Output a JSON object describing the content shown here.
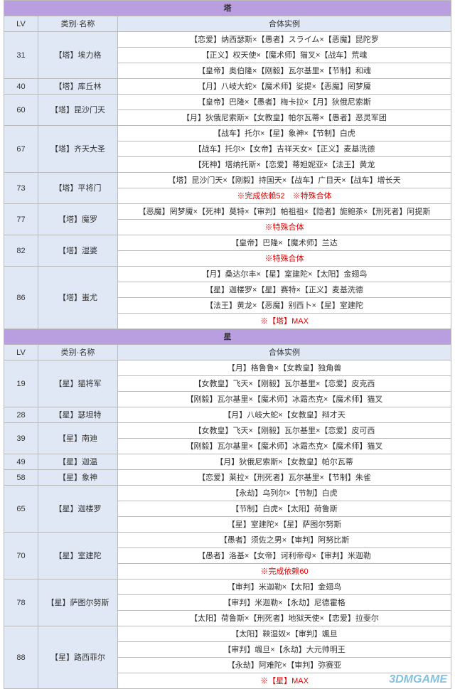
{
  "columns": {
    "lv": "LV",
    "name": "类别·名称",
    "example": "合体实例"
  },
  "sections": [
    {
      "title": "塔",
      "rows": [
        {
          "lv": "31",
          "name": "【塔】埃力格",
          "examples": [
            "【恋爱】纳西瑟斯×【愚者】スライム×【恶魔】昆陀罗",
            "【正义】权天使×【魔术师】猫叉×【战车】荒魂",
            "【皇帝】奥伯隆×【刚毅】瓦尔基里×【节制】和魂"
          ]
        },
        {
          "lv": "40",
          "name": "【塔】库丘林",
          "examples": [
            "【月】八岐大蛇×【魔术师】娑提×【恶魔】罔梦魇"
          ]
        },
        {
          "lv": "60",
          "name": "【塔】昆沙门天",
          "examples": [
            "【皇帝】巴隆×【愚者】梅卡拉×【月】狄俄尼索斯",
            "【月】狄俄尼索斯×【女教皇】帕尔瓦蒂×【愚者】恶灵军团"
          ]
        },
        {
          "lv": "67",
          "name": "【塔】齐天大圣",
          "examples": [
            "【战车】托尔×【星】象神×【节制】白虎",
            "【战车】托尔×【女帝】吉祥天女×【正义】麦基洗德",
            "【死神】塔纳托斯×【恋爱】蒂妲妮亚×【法王】黄龙"
          ]
        },
        {
          "lv": "73",
          "name": "【塔】平将门",
          "examples": [
            "【塔】昆沙门天×【刚毅】持国天×【战车】广目天×【战车】增长天",
            {
              "text": "※完成依赖52　※特殊合体",
              "red": true
            }
          ]
        },
        {
          "lv": "77",
          "name": "【塔】魔罗",
          "examples": [
            "【恶魔】罔梦魇×【死神】莫特×【审判】帕祖祖×【隐者】旎鲍茶×【刑死者】阿提斯",
            {
              "text": "※特殊合体",
              "red": true
            }
          ]
        },
        {
          "lv": "82",
          "name": "【塔】湿婆",
          "examples": [
            "【皇帝】巴隆×【魔术师】兰达",
            {
              "text": "※特殊合体",
              "red": true
            }
          ]
        },
        {
          "lv": "86",
          "name": "【塔】蚩尤",
          "examples": [
            "【月】桑达尔丰×【星】室建陀×【太阳】金翅鸟",
            "【星】迦楼罗×【星】赛特×【正义】麦基洗德",
            "【法王】黄龙×【恶魔】别西卜×【星】室建陀",
            {
              "text": "※【塔】MAX",
              "red": true
            }
          ]
        }
      ]
    },
    {
      "title": "星",
      "rows": [
        {
          "lv": "19",
          "name": "【星】猫将军",
          "examples": [
            "【月】格鲁鲁×【女教皇】独角兽",
            "【女教皇】飞天×【刚毅】瓦尔基里×【恋爱】皮克西",
            "【刚毅】瓦尔基里×【魔术师】冰霜杰克×【魔术师】猫叉"
          ]
        },
        {
          "lv": "28",
          "name": "【星】瑟坦特",
          "examples": [
            "【月】八岐大蛇×【女教皇】辩才天"
          ]
        },
        {
          "lv": "39",
          "name": "【星】南迪",
          "examples": [
            "【女教皇】飞天×【刚毅】瓦尔基里×【恋爱】皮可西",
            "【刚毅】瓦尔基里×【魔术师】冰霜杰克×【魔术师】猫叉"
          ]
        },
        {
          "lv": "49",
          "name": "【星】迦温",
          "examples": [
            "【月】狄俄尼索斯×【女教皇】帕尔瓦蒂"
          ]
        },
        {
          "lv": "58",
          "name": "【星】象神",
          "examples": [
            "【恋爱】莱拉×【刑死者】瓦尔基里×【节制】朱雀"
          ]
        },
        {
          "lv": "65",
          "name": "【星】迦楼罗",
          "examples": [
            "【永劫】乌列尔×【节制】白虎",
            "【节制】白虎×【太阳】荷鲁斯",
            "【星】室建陀×【星】萨图尔努斯"
          ]
        },
        {
          "lv": "70",
          "name": "【星】室建陀",
          "examples": [
            "【愚者】须佐之男×【审判】阿努比斯",
            "【愚者】洛基×【女帝】诃利帝母×【审判】米迦勒",
            {
              "text": "※完成依赖60",
              "red": true
            }
          ]
        },
        {
          "lv": "78",
          "name": "【星】萨图尔努斯",
          "examples": [
            "【审判】米迦勒×【太阳】金翅鸟",
            "【审判】米迦勒×【永劫】尼德霍格",
            "【太阳】荷鲁斯×【刑死者】地狱天使×【恋爱】拉斐尔"
          ]
        },
        {
          "lv": "88",
          "name": "【星】路西菲尔",
          "examples": [
            "【太阳】鞅湿奴×【审判】颯旦",
            "【审判】颯旦×【永劫】大元帅明王",
            "【永劫】阿难陀×【审判】弥赛亚",
            {
              "text": "※【星】MAX",
              "red": true
            }
          ]
        }
      ]
    }
  ],
  "watermark": "3DMGAME"
}
